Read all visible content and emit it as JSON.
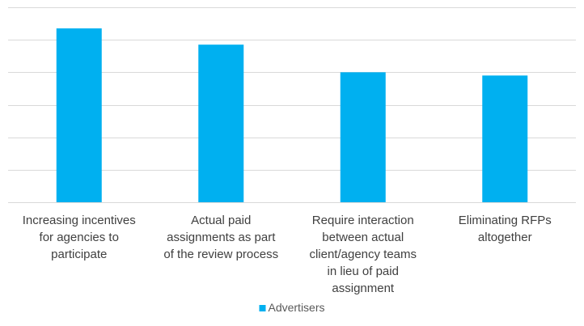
{
  "chart_data": {
    "type": "bar",
    "categories": [
      [
        "Increasing incentives",
        "for agencies to",
        "participate"
      ],
      [
        "Actual paid",
        "assignments as part",
        "of the review process"
      ],
      [
        "Require interaction",
        "between actual",
        "client/agency teams",
        "in lieu of paid",
        "assignment"
      ],
      [
        "Eliminating RFPs",
        "altogether"
      ]
    ],
    "series": [
      {
        "name": "Advertisers",
        "values": [
          5.35,
          4.85,
          4.0,
          3.9
        ]
      }
    ],
    "ylim": [
      0,
      6
    ],
    "y_gridlines": [
      0,
      1,
      2,
      3,
      4,
      5,
      6
    ],
    "y_tick_labels_shown": false,
    "grid": true,
    "legend": "bottom-center",
    "colors": {
      "bar": "#00B0F0",
      "grid": "#D9D9D9",
      "text": "#404040",
      "legend_text": "#595959"
    }
  }
}
